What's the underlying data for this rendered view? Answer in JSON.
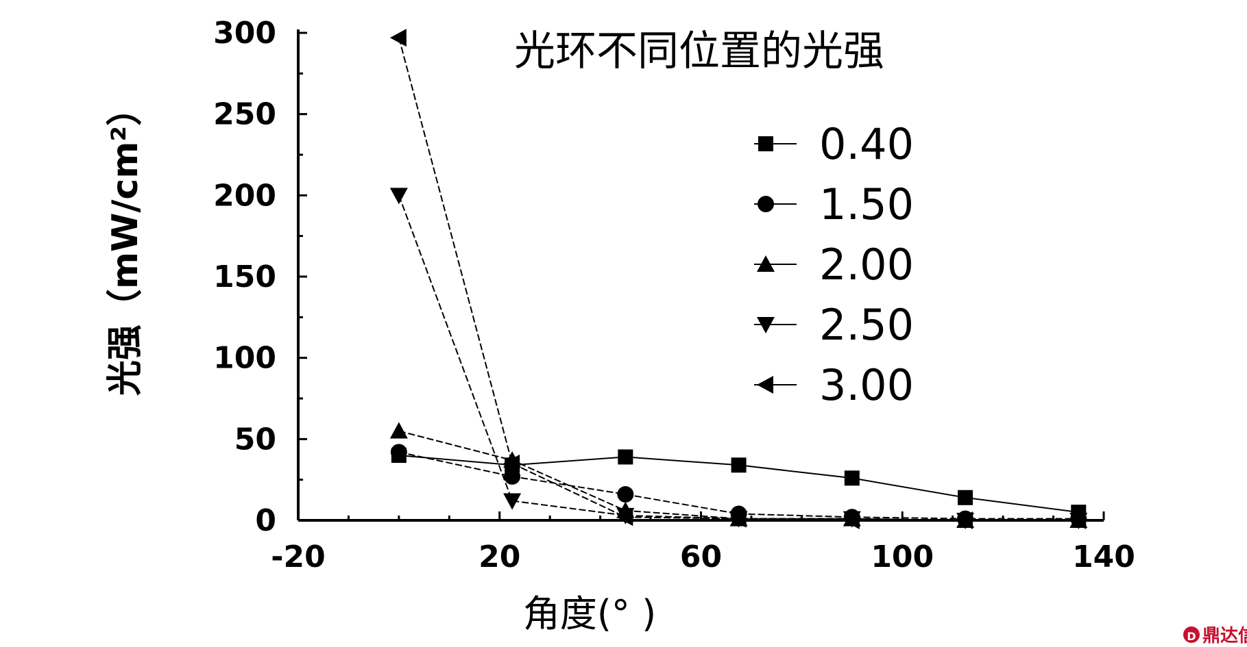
{
  "chart_data": {
    "type": "line",
    "title": "光环不同位置的光强",
    "xlabel": "角度(°  )",
    "ylabel": "光强（mW/cm²）",
    "xlim": [
      -20,
      140
    ],
    "ylim": [
      0,
      300
    ],
    "xticks": [
      -20,
      20,
      60,
      100,
      140
    ],
    "yticks": [
      0,
      50,
      100,
      150,
      200,
      250,
      300
    ],
    "grid": false,
    "legend_position": "top-right",
    "x": [
      0,
      22.5,
      45,
      67.5,
      90,
      112.5,
      135
    ],
    "series": [
      {
        "name": "0.40",
        "marker": "square",
        "values": [
          40,
          34,
          39,
          34,
          26,
          14,
          5
        ]
      },
      {
        "name": "1.50",
        "marker": "circle",
        "values": [
          42,
          27,
          16,
          4,
          2,
          1,
          1
        ]
      },
      {
        "name": "2.00",
        "marker": "triangle-up",
        "values": [
          55,
          37,
          6,
          1,
          1,
          0,
          0
        ]
      },
      {
        "name": "2.50",
        "marker": "triangle-down",
        "values": [
          200,
          12,
          3,
          1,
          1,
          0,
          0
        ]
      },
      {
        "name": "3.00",
        "marker": "triangle-left",
        "values": [
          297,
          35,
          2,
          1,
          0,
          0,
          0
        ]
      }
    ]
  },
  "watermark": {
    "text": "鼎达信",
    "color": "#c8102e"
  }
}
